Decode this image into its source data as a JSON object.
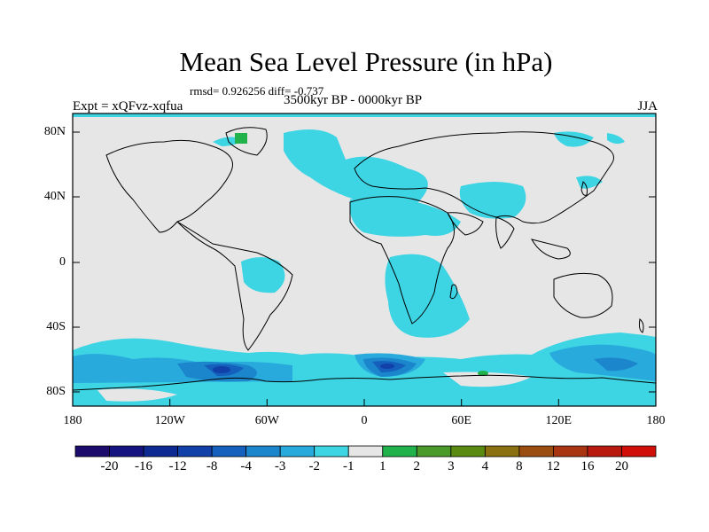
{
  "title": "Mean Sea Level Pressure (in hPa)",
  "stats": "rmsd= 0.926256 diff= -0.737",
  "experiment": "Expt = xQFvz-xqfua",
  "period": "3500kyr BP - 0000kyr BP",
  "season": "JJA",
  "axes": {
    "yticks": [
      "80N",
      "40N",
      "0",
      "40S",
      "80S"
    ],
    "xticks": [
      "180",
      "120W",
      "60W",
      "0",
      "60E",
      "120E",
      "180"
    ]
  },
  "colorbar": {
    "labels": [
      "-20",
      "-16",
      "-12",
      "-8",
      "-4",
      "-3",
      "-2",
      "-1",
      "1",
      "2",
      "3",
      "4",
      "8",
      "12",
      "16",
      "20"
    ],
    "colors": [
      "#1d0b6b",
      "#14137f",
      "#0d2a93",
      "#1040a8",
      "#1560bc",
      "#1c86cd",
      "#29aadc",
      "#3dd4e4",
      "#e6e6e6",
      "#22b24c",
      "#4a9a2a",
      "#5a8a10",
      "#8a7010",
      "#9a4e10",
      "#a83410",
      "#b81a10",
      "#d01008"
    ]
  },
  "colors": {
    "background": "#e6e6e6",
    "light_blue": "#3dd4e4",
    "mid_blue": "#29aadc",
    "blue": "#1c86cd",
    "dark_blue": "#1040a8",
    "green": "#22b24c"
  }
}
